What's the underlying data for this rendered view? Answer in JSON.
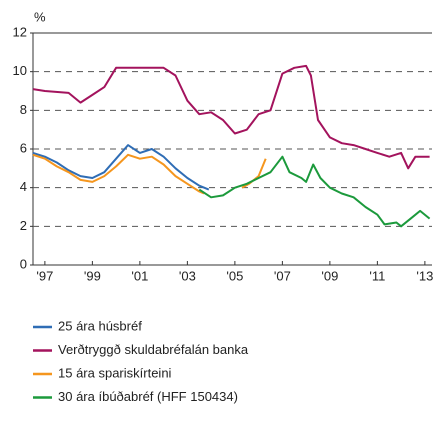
{
  "chart_data": {
    "type": "line",
    "y_label": "%",
    "xlim": [
      1996.5,
      2013.3
    ],
    "ylim": [
      0,
      12
    ],
    "yticks": [
      0,
      2,
      4,
      6,
      8,
      10,
      12
    ],
    "xticks": [
      {
        "value": 1997,
        "label": "'97"
      },
      {
        "value": 1999,
        "label": "'99"
      },
      {
        "value": 2001,
        "label": "'01"
      },
      {
        "value": 2003,
        "label": "'03"
      },
      {
        "value": 2005,
        "label": "'05"
      },
      {
        "value": 2007,
        "label": "'07"
      },
      {
        "value": 2009,
        "label": "'09"
      },
      {
        "value": 2011,
        "label": "'11"
      },
      {
        "value": 2013,
        "label": "'13"
      }
    ],
    "grid": true,
    "series": [
      {
        "name": "25 ára húsbréf",
        "color": "#2f6db5",
        "x": [
          1996.5,
          1997,
          1997.5,
          1998,
          1998.5,
          1999,
          1999.5,
          2000,
          2000.5,
          2001,
          2001.5,
          2002,
          2002.5,
          2003,
          2003.5,
          2003.9
        ],
        "values": [
          5.8,
          5.6,
          5.3,
          4.9,
          4.6,
          4.5,
          4.8,
          5.5,
          6.2,
          5.8,
          6.0,
          5.6,
          5.0,
          4.5,
          4.1,
          3.9
        ]
      },
      {
        "name": "Verðtryggð skuldabréfalán banka",
        "color": "#a3135d",
        "x": [
          1996.5,
          1997,
          1998,
          1998.5,
          1999,
          1999.5,
          2000,
          2001,
          2002,
          2002.5,
          2003,
          2003.5,
          2004,
          2004.5,
          2005,
          2005.5,
          2006,
          2006.5,
          2007,
          2007.5,
          2008,
          2008.2,
          2008.5,
          2009,
          2009.5,
          2010,
          2010.5,
          2011,
          2011.5,
          2012,
          2012.3,
          2012.6,
          2013.2
        ],
        "values": [
          9.1,
          9.0,
          8.9,
          8.4,
          8.8,
          9.2,
          10.2,
          10.2,
          10.2,
          9.8,
          8.5,
          7.8,
          7.9,
          7.5,
          6.8,
          7.0,
          7.8,
          8.0,
          9.9,
          10.2,
          10.3,
          9.8,
          7.5,
          6.6,
          6.3,
          6.2,
          6.0,
          5.8,
          5.6,
          5.8,
          5.0,
          5.6,
          5.6
        ]
      },
      {
        "name": "15 ára spariskírteini",
        "color": "#f5961e",
        "x": [
          1996.5,
          1997,
          1997.5,
          1998,
          1998.5,
          1999,
          1999.5,
          2000,
          2000.5,
          2001,
          2001.5,
          2002,
          2002.5,
          2003,
          2003.5,
          2003.7,
          2004.5,
          2005.3,
          2005.6,
          2006,
          2006.3
        ],
        "values": [
          5.7,
          5.5,
          5.1,
          4.8,
          4.4,
          4.3,
          4.6,
          5.1,
          5.7,
          5.5,
          5.6,
          5.2,
          4.6,
          4.2,
          3.8,
          3.7,
          null,
          4.0,
          4.2,
          4.6,
          5.5
        ]
      },
      {
        "name": "30 ára íbúðabréf (HFF 150434)",
        "color": "#1c9a3c",
        "x": [
          2003.5,
          2004,
          2004.5,
          2005,
          2005.5,
          2006,
          2006.5,
          2007,
          2007.3,
          2007.8,
          2008,
          2008.3,
          2008.6,
          2009,
          2009.5,
          2010,
          2010.5,
          2011,
          2011.3,
          2011.8,
          2012,
          2012.5,
          2012.8,
          2013.2
        ],
        "values": [
          3.9,
          3.5,
          3.6,
          4.0,
          4.2,
          4.5,
          4.8,
          5.6,
          4.8,
          4.5,
          4.3,
          5.2,
          4.5,
          4.0,
          3.7,
          3.5,
          3.0,
          2.6,
          2.1,
          2.2,
          2.0,
          2.5,
          2.8,
          2.4
        ]
      }
    ]
  }
}
